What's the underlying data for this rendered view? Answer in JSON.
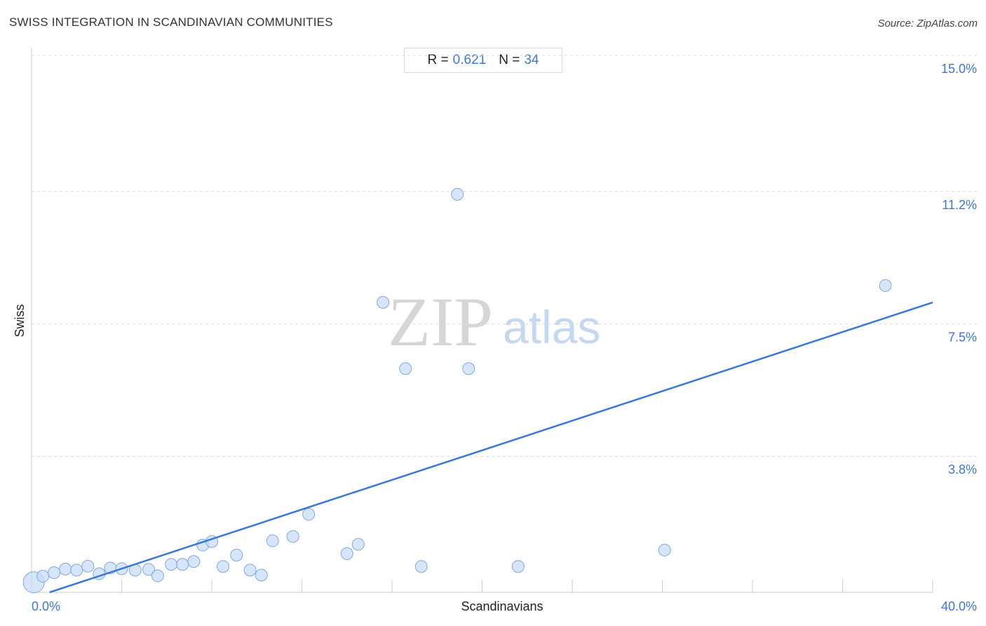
{
  "title": "SWISS INTEGRATION IN SCANDINAVIAN COMMUNITIES",
  "source": "Source: ZipAtlas.com",
  "stats": {
    "r_label": "R =",
    "r_value": "0.621",
    "n_label": "N =",
    "n_value": "34"
  },
  "watermark": {
    "zip": "ZIP",
    "atlas": "atlas"
  },
  "colors": {
    "accent": "#3a78d8",
    "point_fill": "#c9dcf5",
    "point_stroke": "#7ea8e6",
    "grid": "#dddddd",
    "axis": "#cccccc"
  },
  "chart_data": {
    "type": "scatter",
    "title": "SWISS INTEGRATION IN SCANDINAVIAN COMMUNITIES",
    "xlabel": "Scandinavians",
    "ylabel": "Swiss",
    "xlim": [
      0,
      40
    ],
    "ylim": [
      0,
      15
    ],
    "x_tick_labels": [
      {
        "value": 0,
        "label": "0.0%"
      },
      {
        "value": 40,
        "label": "40.0%"
      }
    ],
    "y_tick_labels": [
      {
        "value": 15.0,
        "label": "15.0%"
      },
      {
        "value": 11.2,
        "label": "11.2%"
      },
      {
        "value": 7.5,
        "label": "7.5%"
      },
      {
        "value": 3.8,
        "label": "3.8%"
      }
    ],
    "grid": true,
    "r": 0.621,
    "n": 34,
    "points": [
      {
        "x": 0.1,
        "y": 0.28,
        "big": true
      },
      {
        "x": 0.5,
        "y": 0.45
      },
      {
        "x": 1.0,
        "y": 0.55
      },
      {
        "x": 1.5,
        "y": 0.65
      },
      {
        "x": 2.0,
        "y": 0.62
      },
      {
        "x": 2.5,
        "y": 0.73
      },
      {
        "x": 3.0,
        "y": 0.52
      },
      {
        "x": 3.5,
        "y": 0.68
      },
      {
        "x": 4.0,
        "y": 0.66
      },
      {
        "x": 4.6,
        "y": 0.62
      },
      {
        "x": 5.2,
        "y": 0.64
      },
      {
        "x": 5.6,
        "y": 0.46
      },
      {
        "x": 6.2,
        "y": 0.78
      },
      {
        "x": 6.7,
        "y": 0.78
      },
      {
        "x": 7.2,
        "y": 0.86
      },
      {
        "x": 7.6,
        "y": 1.32
      },
      {
        "x": 8.0,
        "y": 1.42
      },
      {
        "x": 8.5,
        "y": 0.72
      },
      {
        "x": 9.1,
        "y": 1.04
      },
      {
        "x": 9.7,
        "y": 0.62
      },
      {
        "x": 10.2,
        "y": 0.48
      },
      {
        "x": 10.7,
        "y": 1.44
      },
      {
        "x": 11.6,
        "y": 1.56
      },
      {
        "x": 12.3,
        "y": 2.18
      },
      {
        "x": 14.0,
        "y": 1.08
      },
      {
        "x": 14.5,
        "y": 1.34
      },
      {
        "x": 15.6,
        "y": 8.1
      },
      {
        "x": 16.6,
        "y": 6.25
      },
      {
        "x": 17.3,
        "y": 0.72
      },
      {
        "x": 18.9,
        "y": 11.12
      },
      {
        "x": 19.4,
        "y": 6.25
      },
      {
        "x": 21.6,
        "y": 0.72
      },
      {
        "x": 28.1,
        "y": 1.18
      },
      {
        "x": 37.9,
        "y": 8.57
      }
    ],
    "trendline": {
      "x": [
        0.8,
        40.0
      ],
      "y": [
        0.0,
        8.1
      ]
    }
  }
}
